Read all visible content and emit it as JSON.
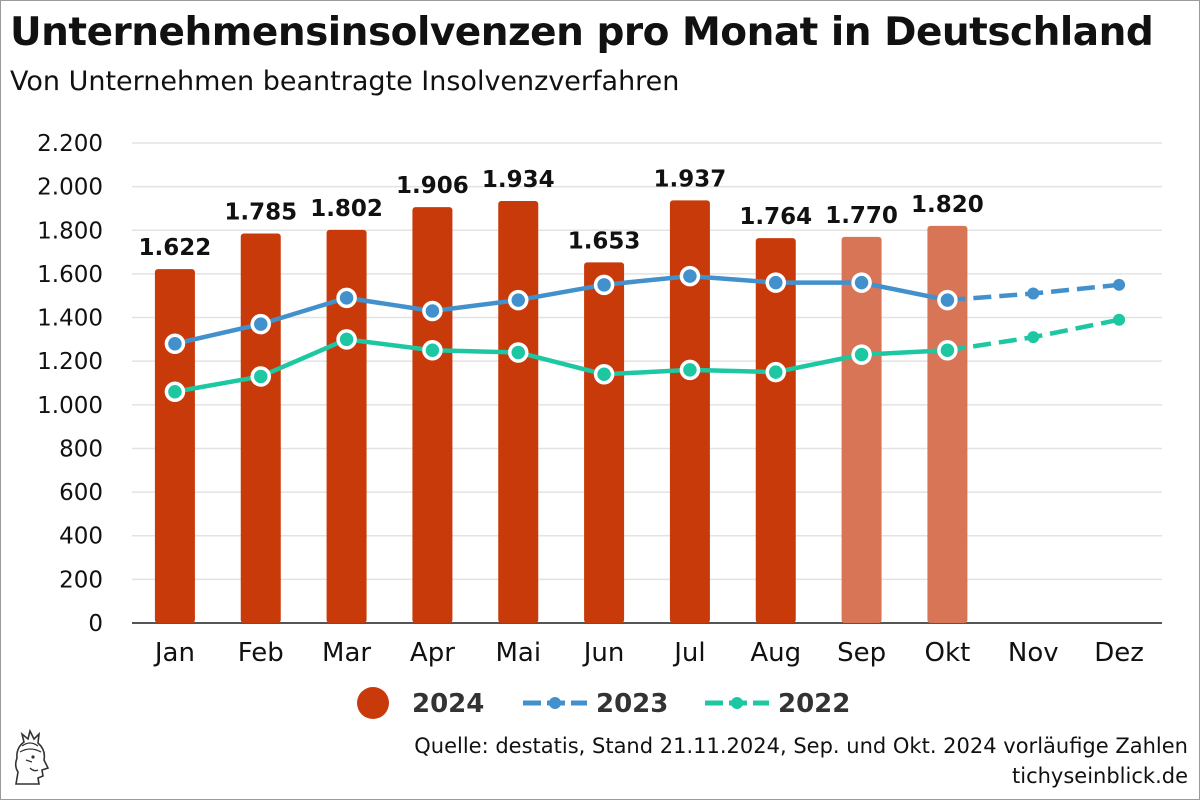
{
  "title": "Unternehmensinsolvenzen pro Monat in Deutschland",
  "subtitle": "Von Unternehmen beantragte Insolvenzverfahren",
  "source": "Quelle: destatis, Stand 21.11.2024, Sep. und Okt. 2024 vorläufige Zahlen",
  "site": "tichyseinblick.de",
  "colors": {
    "bar_2024": "#c93a0b",
    "bar_2024_preliminary": "#d97557",
    "line_2023": "#4391cc",
    "line_2022": "#1dc7a2",
    "grid": "#e3e3e3"
  },
  "chart_data": {
    "type": "bar",
    "categories": [
      "Jan",
      "Feb",
      "Mar",
      "Apr",
      "Mai",
      "Jun",
      "Jul",
      "Aug",
      "Sep",
      "Okt",
      "Nov",
      "Dez"
    ],
    "ylim": [
      0,
      2200
    ],
    "yticks": [
      0,
      200,
      400,
      600,
      800,
      1000,
      1200,
      1400,
      1600,
      1800,
      2000,
      2200
    ],
    "ytick_labels": [
      "0",
      "200",
      "400",
      "600",
      "800",
      "1.000",
      "1.200",
      "1.400",
      "1.600",
      "1.800",
      "2.000",
      "2.200"
    ],
    "grid": true,
    "legend_position": "bottom",
    "series": [
      {
        "name": "2024",
        "kind": "bar",
        "values": [
          1622,
          1785,
          1802,
          1906,
          1934,
          1653,
          1937,
          1764,
          1770,
          1820,
          null,
          null
        ],
        "labels": [
          "1.622",
          "1.785",
          "1.802",
          "1.906",
          "1.934",
          "1.653",
          "1.937",
          "1.764",
          "1.770",
          "1.820",
          "",
          ""
        ],
        "preliminary": [
          false,
          false,
          false,
          false,
          false,
          false,
          false,
          false,
          true,
          true,
          false,
          false
        ]
      },
      {
        "name": "2023",
        "kind": "line",
        "values": [
          1280,
          1370,
          1490,
          1430,
          1480,
          1550,
          1590,
          1560,
          1560,
          1480,
          1510,
          1550
        ]
      },
      {
        "name": "2022",
        "kind": "line",
        "values": [
          1060,
          1130,
          1300,
          1250,
          1240,
          1140,
          1160,
          1150,
          1230,
          1250,
          1310,
          1390
        ]
      }
    ]
  }
}
